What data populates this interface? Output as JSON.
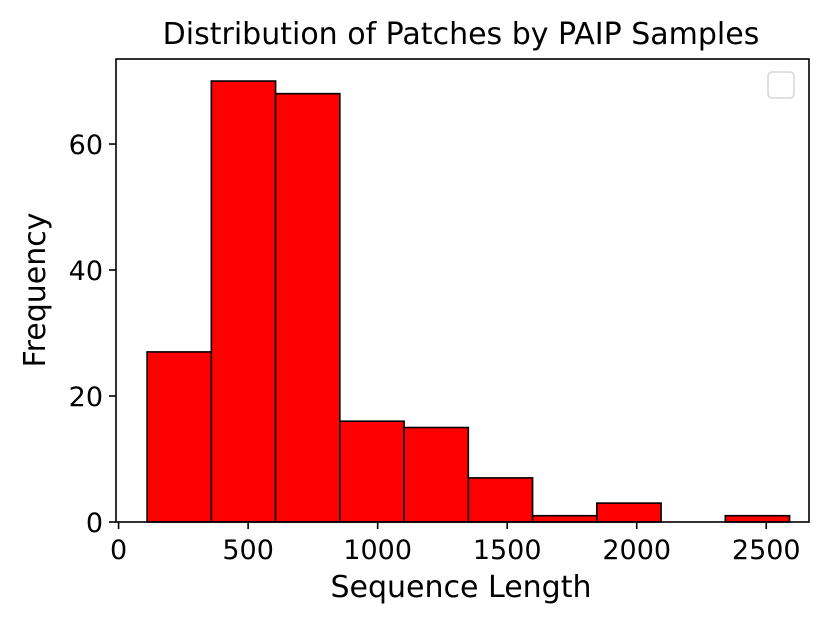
{
  "chart_data": {
    "type": "bar",
    "title": "Distribution of Patches by PAIP Samples",
    "xlabel": "Sequence Length",
    "ylabel": "Frequency",
    "xlim": [
      -10,
      2665
    ],
    "ylim": [
      0,
      73.5
    ],
    "x_ticks": [
      0,
      500,
      1000,
      1500,
      2000,
      2500
    ],
    "y_ticks": [
      0,
      20,
      40,
      60
    ],
    "bins": [
      {
        "start": 110,
        "end": 358,
        "value": 27
      },
      {
        "start": 358,
        "end": 606,
        "value": 70
      },
      {
        "start": 606,
        "end": 854,
        "value": 68
      },
      {
        "start": 854,
        "end": 1102,
        "value": 16
      },
      {
        "start": 1102,
        "end": 1350,
        "value": 15
      },
      {
        "start": 1350,
        "end": 1598,
        "value": 7
      },
      {
        "start": 1598,
        "end": 1846,
        "value": 1
      },
      {
        "start": 1846,
        "end": 2094,
        "value": 3
      },
      {
        "start": 2094,
        "end": 2342,
        "value": 0
      },
      {
        "start": 2342,
        "end": 2590,
        "value": 1
      }
    ],
    "bar_color": "#ff0000",
    "edge_color": "#000000",
    "grid": false,
    "legend": {
      "placement": "upper-right",
      "entries": []
    }
  }
}
